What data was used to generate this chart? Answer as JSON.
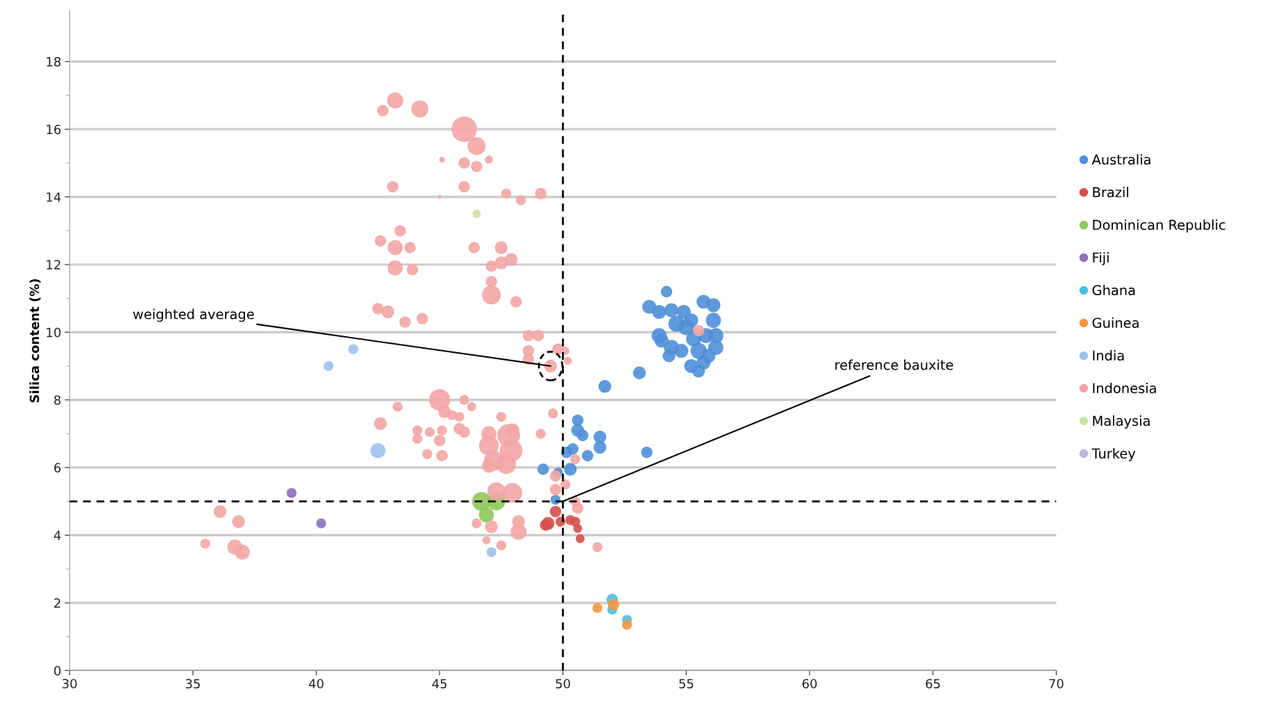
{
  "chart_data": {
    "type": "bubble",
    "ylabel": "Silica content (%)",
    "xlim": [
      30,
      70
    ],
    "xticks": [
      30,
      35,
      40,
      45,
      50,
      55,
      60,
      65,
      70
    ],
    "ylim": [
      0,
      19.5
    ],
    "yticks": [
      0,
      2,
      4,
      6,
      8,
      10,
      12,
      14,
      16,
      18
    ],
    "grid": "y",
    "legend": "right",
    "ref_lines": [
      {
        "axis": "x",
        "value": 50,
        "color": "#000000",
        "line_style": "dashed"
      },
      {
        "axis": "y",
        "value": 5,
        "color": "#000000",
        "line_style": "dashed"
      }
    ],
    "annotations": [
      {
        "text": "weighted average",
        "x": 49.5,
        "y": 9.0
      },
      {
        "text": "reference bauxite",
        "x": 50,
        "y": 5
      }
    ],
    "series": [
      {
        "name": "Australia",
        "color": "#4f8fd8",
        "x": [
          54.2,
          53.5,
          53.9,
          54.4,
          54.9,
          55.2,
          55.7,
          56.1,
          56.1,
          54.6,
          55.0,
          53.9,
          54.4,
          54.3,
          54.8,
          55.3,
          55.8,
          56.2,
          56.2,
          55.5,
          55.2,
          55.7,
          55.9,
          55.5,
          54.0,
          53.1,
          51.7,
          50.6,
          50.6,
          50.8,
          51.5,
          51.5,
          50.4,
          50.15,
          51.0,
          53.4,
          49.2,
          49.8,
          50.3,
          49.7
        ],
        "values": [
          11.2,
          10.75,
          10.6,
          10.65,
          10.6,
          10.35,
          10.9,
          10.8,
          10.35,
          10.25,
          10.15,
          9.9,
          9.55,
          9.3,
          9.45,
          9.8,
          9.9,
          9.9,
          9.55,
          9.45,
          9.0,
          9.1,
          9.3,
          8.85,
          9.75,
          8.8,
          8.4,
          7.4,
          7.1,
          6.95,
          6.9,
          6.6,
          6.55,
          6.45,
          6.35,
          6.45,
          5.95,
          5.85,
          5.95,
          5.05
        ],
        "sizes": [
          0.2,
          0.3,
          0.3,
          0.3,
          0.3,
          0.3,
          0.3,
          0.3,
          0.35,
          0.4,
          0.4,
          0.35,
          0.35,
          0.25,
          0.3,
          0.35,
          0.35,
          0.35,
          0.35,
          0.4,
          0.3,
          0.3,
          0.3,
          0.25,
          0.3,
          0.25,
          0.25,
          0.2,
          0.25,
          0.2,
          0.25,
          0.25,
          0.2,
          0.2,
          0.2,
          0.2,
          0.2,
          0.15,
          0.25,
          0.15
        ]
      },
      {
        "name": "Brazil",
        "color": "#d64f4b",
        "x": [
          49.7,
          49.9,
          49.4,
          49.3,
          50.3,
          50.5,
          50.6,
          50.7
        ],
        "values": [
          4.7,
          4.4,
          4.35,
          4.3,
          4.45,
          4.4,
          4.2,
          3.9
        ],
        "sizes": [
          0.2,
          0.15,
          0.25,
          0.2,
          0.15,
          0.15,
          0.12,
          0.12
        ]
      },
      {
        "name": "Dominican Republic",
        "color": "#8fc85a",
        "x": [
          46.7,
          47.3,
          46.9
        ],
        "values": [
          5.0,
          5.0,
          4.6
        ],
        "sizes": [
          0.55,
          0.5,
          0.35
        ]
      },
      {
        "name": "Fiji",
        "color": "#8e6fb8",
        "x": [
          39.0,
          40.2
        ],
        "values": [
          5.25,
          4.35
        ],
        "sizes": [
          0.15,
          0.15
        ]
      },
      {
        "name": "Ghana",
        "color": "#4bc0e0",
        "x": [
          52.0,
          52.0,
          52.6
        ],
        "values": [
          2.1,
          1.8,
          1.5
        ],
        "sizes": [
          0.2,
          0.15,
          0.15
        ]
      },
      {
        "name": "Guinea",
        "color": "#f7963f",
        "x": [
          51.4,
          52.05,
          52.6
        ],
        "values": [
          1.85,
          1.95,
          1.35
        ],
        "sizes": [
          0.15,
          0.2,
          0.15
        ]
      },
      {
        "name": "India",
        "color": "#9fc1ee",
        "x": [
          40.5,
          41.5,
          42.5,
          47.1
        ],
        "values": [
          9.0,
          9.5,
          6.5,
          3.5
        ],
        "sizes": [
          0.15,
          0.15,
          0.35,
          0.15
        ]
      },
      {
        "name": "Indonesia",
        "color": "#f2a5a5",
        "x": [
          43.2,
          44.2,
          42.7,
          46.0,
          46.5,
          45.1,
          46.0,
          46.5,
          47.0,
          43.1,
          46.0,
          47.7,
          48.3,
          49.1,
          45.0,
          42.6,
          43.4,
          43.2,
          43.8,
          43.2,
          43.9,
          46.4,
          47.5,
          47.1,
          47.5,
          47.9,
          47.1,
          47.1,
          48.1,
          42.5,
          42.9,
          43.6,
          44.3,
          48.6,
          49.0,
          48.6,
          48.6,
          49.5,
          49.8,
          50.1,
          50.2,
          55.5,
          42.6,
          43.3,
          45.0,
          45.2,
          45.5,
          45.8,
          46.0,
          46.3,
          44.1,
          44.6,
          45.1,
          44.1,
          45.0,
          45.8,
          46.0,
          44.5,
          45.1,
          47.0,
          47.0,
          47.5,
          47.8,
          47.95,
          47.9,
          47.2,
          47.7,
          47.0,
          49.1,
          49.6,
          49.7,
          49.7,
          50.1,
          50.5,
          47.3,
          47.95,
          46.5,
          47.1,
          48.2,
          48.2,
          46.9,
          47.5,
          51.4,
          50.5,
          50.6,
          36.1,
          36.85,
          35.5,
          36.7,
          37.0
        ],
        "values": [
          16.85,
          16.6,
          16.55,
          16.0,
          15.5,
          15.1,
          15.0,
          14.9,
          15.1,
          14.3,
          14.3,
          14.1,
          13.9,
          14.1,
          14.0,
          12.7,
          13.0,
          12.5,
          12.5,
          11.9,
          11.85,
          12.5,
          12.5,
          11.95,
          12.05,
          12.15,
          11.5,
          11.1,
          10.9,
          10.7,
          10.6,
          10.3,
          10.4,
          9.9,
          9.9,
          9.45,
          9.2,
          9.0,
          9.5,
          9.45,
          9.15,
          10.05,
          7.3,
          7.8,
          8.0,
          7.65,
          7.55,
          7.5,
          8.0,
          7.8,
          7.1,
          7.05,
          7.1,
          6.85,
          6.8,
          7.15,
          7.05,
          6.4,
          6.35,
          7.0,
          6.65,
          7.5,
          6.95,
          7.1,
          6.5,
          6.2,
          6.1,
          6.05,
          7.0,
          7.6,
          5.75,
          5.35,
          5.5,
          6.25,
          5.3,
          5.25,
          4.35,
          4.25,
          4.4,
          4.1,
          3.85,
          3.7,
          3.65,
          5.0,
          4.8,
          4.7,
          4.4,
          3.75,
          3.65,
          3.5
        ],
        "sizes": [
          0.4,
          0.45,
          0.2,
          1.0,
          0.5,
          0.05,
          0.2,
          0.2,
          0.1,
          0.2,
          0.2,
          0.15,
          0.15,
          0.2,
          0.02,
          0.2,
          0.2,
          0.35,
          0.2,
          0.35,
          0.2,
          0.2,
          0.25,
          0.2,
          0.25,
          0.25,
          0.2,
          0.55,
          0.2,
          0.2,
          0.25,
          0.2,
          0.2,
          0.2,
          0.2,
          0.2,
          0.2,
          0.25,
          0.2,
          0.1,
          0.1,
          0.2,
          0.25,
          0.15,
          0.7,
          0.25,
          0.15,
          0.15,
          0.15,
          0.12,
          0.15,
          0.15,
          0.15,
          0.15,
          0.2,
          0.2,
          0.2,
          0.15,
          0.2,
          0.35,
          0.6,
          0.15,
          0.8,
          0.3,
          0.8,
          0.6,
          0.6,
          0.3,
          0.15,
          0.15,
          0.2,
          0.2,
          0.15,
          0.15,
          0.5,
          0.6,
          0.15,
          0.25,
          0.25,
          0.4,
          0.1,
          0.15,
          0.15,
          0.15,
          0.2,
          0.25,
          0.25,
          0.15,
          0.35,
          0.35
        ]
      },
      {
        "name": "Malaysia",
        "color": "#c8e6a0",
        "x": [
          46.5
        ],
        "values": [
          13.5
        ],
        "sizes": [
          0.1
        ]
      },
      {
        "name": "Turkey",
        "color": "#c5b3e0"
      }
    ]
  }
}
